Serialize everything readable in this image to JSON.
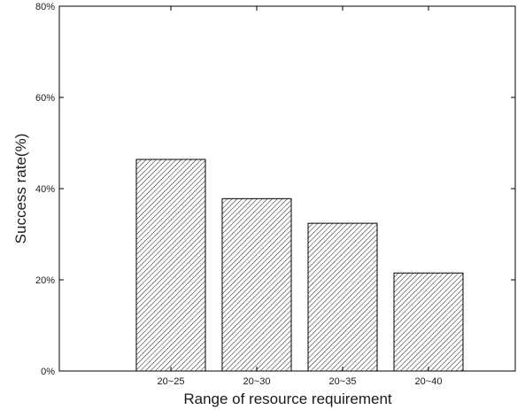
{
  "chart_data": {
    "type": "bar",
    "title": "",
    "xlabel": "Range of resource requirement",
    "ylabel": "Success rate(%)",
    "categories": [
      "20~25",
      "20~30",
      "20~35",
      "20~40"
    ],
    "values": [
      46.4,
      37.8,
      32.4,
      21.5
    ],
    "ylim": [
      0,
      80
    ],
    "yticks": [
      0,
      20,
      40,
      60,
      80
    ],
    "ytick_labels": [
      "0%",
      "20%",
      "40%",
      "60%",
      "80%"
    ],
    "bar_fill": "diagonal-hatch",
    "colors": {
      "bar_edge": "#000000",
      "hatch": "#000000",
      "background": "#ffffff"
    },
    "grid": false,
    "legend": "none"
  }
}
